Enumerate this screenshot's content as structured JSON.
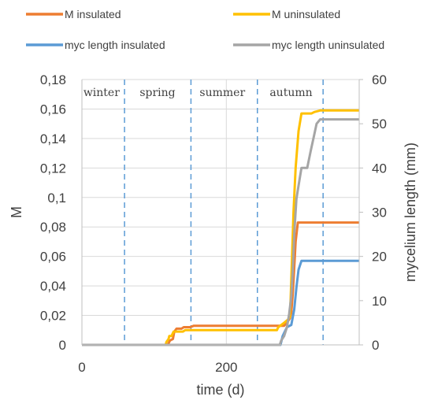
{
  "chart_data": {
    "type": "line",
    "xlabel": "time (d)",
    "ylabel": "M",
    "y2label": "mycelium length (mm)",
    "xlim": [
      0,
      384
    ],
    "ylim": [
      0,
      0.18
    ],
    "y2lim": [
      0,
      60
    ],
    "x_ticks": [
      "0",
      "200"
    ],
    "y_ticks": [
      "0",
      "0,02",
      "0,04",
      "0,06",
      "0,08",
      "0,1",
      "0,12",
      "0,14",
      "0,16",
      "0,18"
    ],
    "y2_ticks": [
      "0",
      "10",
      "20",
      "30",
      "40",
      "50",
      "60"
    ],
    "grid": true,
    "legend_position": "top",
    "season_boundaries": [
      59,
      151,
      243,
      334
    ],
    "seasons": [
      {
        "label": "winter",
        "x": 2
      },
      {
        "label": "spring",
        "x": 80
      },
      {
        "label": "summer",
        "x": 163
      },
      {
        "label": "autumn",
        "x": 260
      }
    ],
    "series": [
      {
        "name": "M insulated",
        "axis": "left",
        "color": "#ED7D31",
        "points": [
          [
            0,
            0
          ],
          [
            119,
            0
          ],
          [
            122,
            0.003
          ],
          [
            126,
            0.004
          ],
          [
            128,
            0.009
          ],
          [
            131,
            0.011
          ],
          [
            138,
            0.011
          ],
          [
            141,
            0.012
          ],
          [
            150,
            0.012
          ],
          [
            155,
            0.013
          ],
          [
            280,
            0.013
          ],
          [
            284,
            0.015
          ],
          [
            288,
            0.018
          ],
          [
            290,
            0.022
          ],
          [
            292,
            0.035
          ],
          [
            294,
            0.052
          ],
          [
            296,
            0.07
          ],
          [
            299,
            0.083
          ],
          [
            384,
            0.083
          ]
        ]
      },
      {
        "name": "M uninsulated",
        "axis": "left",
        "color": "#FFC000",
        "points": [
          [
            0,
            0
          ],
          [
            116,
            0
          ],
          [
            117,
            0.002
          ],
          [
            120,
            0.004
          ],
          [
            121,
            0.006
          ],
          [
            124,
            0.006
          ],
          [
            127,
            0.009
          ],
          [
            140,
            0.009
          ],
          [
            143,
            0.01
          ],
          [
            270,
            0.01
          ],
          [
            272,
            0.012
          ],
          [
            280,
            0.015
          ],
          [
            285,
            0.017
          ],
          [
            288,
            0.019
          ],
          [
            289,
            0.03
          ],
          [
            291,
            0.06
          ],
          [
            293,
            0.09
          ],
          [
            296,
            0.12
          ],
          [
            300,
            0.145
          ],
          [
            304,
            0.157
          ],
          [
            318,
            0.157
          ],
          [
            322,
            0.158
          ],
          [
            330,
            0.159
          ],
          [
            384,
            0.159
          ]
        ]
      },
      {
        "name": "myc length insulated",
        "axis": "right",
        "color": "#5B9BD5",
        "points": [
          [
            0,
            0
          ],
          [
            275,
            0
          ],
          [
            278,
            2
          ],
          [
            284,
            4
          ],
          [
            290,
            4.5
          ],
          [
            294,
            8
          ],
          [
            297,
            13
          ],
          [
            300,
            17
          ],
          [
            304,
            19
          ],
          [
            384,
            19
          ]
        ]
      },
      {
        "name": "myc length uninsulated",
        "axis": "right",
        "color": "#A5A5A5",
        "points": [
          [
            0,
            0
          ],
          [
            274,
            0
          ],
          [
            276,
            1
          ],
          [
            280,
            2
          ],
          [
            284,
            4
          ],
          [
            287,
            7
          ],
          [
            290,
            11
          ],
          [
            292,
            17
          ],
          [
            294,
            25
          ],
          [
            297,
            33
          ],
          [
            301,
            37
          ],
          [
            304,
            40
          ],
          [
            312,
            40
          ],
          [
            317,
            44
          ],
          [
            321,
            47
          ],
          [
            325,
            50
          ],
          [
            330,
            51
          ],
          [
            384,
            51
          ]
        ]
      }
    ]
  }
}
